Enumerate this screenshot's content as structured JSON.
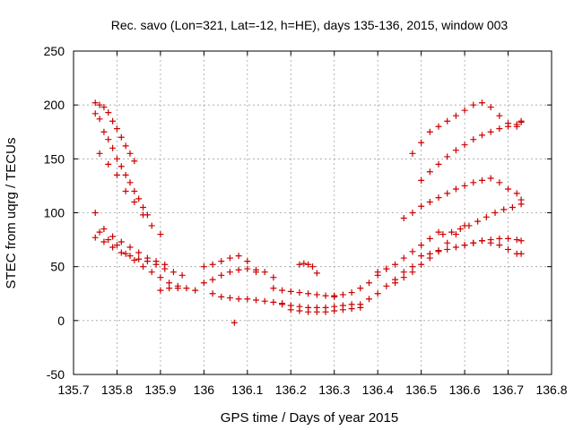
{
  "chart_data": {
    "type": "scatter",
    "title": "Rec. savo (Lon=321, Lat=-12, h=HE), days 135-136, 2015, window 003",
    "xlabel": "GPS time / Days of year 2015",
    "ylabel": "STEC from uqrg / TECUs",
    "xlim": [
      135.7,
      136.8
    ],
    "ylim": [
      -50,
      250
    ],
    "xticks": [
      "135.7",
      "135.8",
      "135.9",
      "136",
      "136.1",
      "136.2",
      "136.3",
      "136.4",
      "136.5",
      "136.6",
      "136.7",
      "136.8"
    ],
    "xtick_values": [
      135.7,
      135.8,
      135.9,
      136.0,
      136.1,
      136.2,
      136.3,
      136.4,
      136.5,
      136.6,
      136.7,
      136.8
    ],
    "yticks": [
      "-50",
      "0",
      "50",
      "100",
      "150",
      "200",
      "250"
    ],
    "ytick_values": [
      -50,
      0,
      50,
      100,
      150,
      200,
      250
    ],
    "grid": true,
    "marker": "plus",
    "color": "#cc0000",
    "x": [
      135.75,
      135.76,
      135.77,
      135.78,
      135.79,
      135.8,
      135.81,
      135.82,
      135.83,
      135.84,
      135.75,
      135.76,
      135.77,
      135.78,
      135.79,
      135.8,
      135.81,
      135.82,
      135.83,
      135.84,
      135.85,
      135.86,
      135.87,
      135.76,
      135.78,
      135.8,
      135.82,
      135.84,
      135.86,
      135.88,
      135.9,
      135.75,
      135.77,
      135.79,
      135.81,
      135.83,
      135.85,
      135.87,
      135.89,
      135.91,
      135.75,
      135.77,
      135.79,
      135.81,
      135.83,
      135.85,
      135.87,
      135.89,
      135.91,
      135.93,
      135.95,
      135.76,
      135.78,
      135.8,
      135.82,
      135.84,
      135.86,
      135.88,
      135.9,
      135.92,
      135.94,
      135.9,
      135.92,
      135.94,
      135.96,
      135.98,
      136.0,
      136.02,
      136.04,
      136.06,
      136.08,
      136.1,
      136.12,
      136.0,
      136.02,
      136.04,
      136.06,
      136.08,
      136.1,
      136.12,
      136.14,
      136.16,
      136.02,
      136.04,
      136.06,
      136.08,
      136.1,
      136.12,
      136.14,
      136.16,
      136.18,
      136.07,
      136.16,
      136.18,
      136.2,
      136.22,
      136.24,
      136.26,
      136.28,
      136.3,
      136.18,
      136.2,
      136.22,
      136.24,
      136.26,
      136.28,
      136.3,
      136.32,
      136.34,
      136.2,
      136.22,
      136.24,
      136.26,
      136.28,
      136.3,
      136.32,
      136.34,
      136.36,
      136.22,
      136.23,
      136.24,
      136.25,
      136.26,
      136.3,
      136.32,
      136.34,
      136.36,
      136.38,
      136.4,
      136.42,
      136.36,
      136.38,
      136.4,
      136.42,
      136.44,
      136.46,
      136.48,
      136.4,
      136.42,
      136.44,
      136.46,
      136.48,
      136.5,
      136.52,
      136.54,
      136.44,
      136.46,
      136.48,
      136.5,
      136.52,
      136.54,
      136.56,
      136.58,
      136.6,
      136.48,
      136.5,
      136.52,
      136.54,
      136.56,
      136.58,
      136.6,
      136.62,
      136.64,
      136.66,
      136.68,
      136.7,
      136.72,
      136.73,
      136.5,
      136.52,
      136.54,
      136.56,
      136.58,
      136.6,
      136.62,
      136.64,
      136.66,
      136.68,
      136.7,
      136.72,
      136.73,
      136.46,
      136.48,
      136.5,
      136.52,
      136.54,
      136.56,
      136.58,
      136.6,
      136.62,
      136.64,
      136.66,
      136.68,
      136.7,
      136.72,
      136.73,
      136.55,
      136.57,
      136.59,
      136.61,
      136.63,
      136.65,
      136.67,
      136.69,
      136.71,
      136.73,
      136.6,
      136.62,
      136.64,
      136.66,
      136.68,
      136.7,
      136.72,
      136.73,
      136.5,
      136.52,
      136.54,
      136.56,
      136.58,
      136.6,
      136.62,
      136.64,
      136.66,
      136.68,
      136.7,
      136.72,
      136.73
    ],
    "y": [
      202,
      200,
      198,
      193,
      185,
      178,
      170,
      162,
      155,
      148,
      192,
      187,
      175,
      168,
      160,
      150,
      143,
      135,
      128,
      120,
      113,
      105,
      98,
      155,
      145,
      135,
      120,
      110,
      98,
      88,
      80,
      100,
      85,
      78,
      73,
      68,
      63,
      58,
      55,
      52,
      77,
      73,
      68,
      63,
      60,
      57,
      55,
      52,
      48,
      45,
      42,
      82,
      75,
      70,
      62,
      56,
      50,
      45,
      40,
      35,
      30,
      28,
      30,
      32,
      30,
      28,
      50,
      52,
      55,
      58,
      60,
      55,
      45,
      35,
      38,
      42,
      45,
      47,
      48,
      47,
      45,
      40,
      25,
      22,
      21,
      20,
      20,
      19,
      18,
      17,
      16,
      -2,
      30,
      28,
      27,
      26,
      25,
      24,
      23,
      23,
      15,
      14,
      13,
      12,
      12,
      12,
      13,
      14,
      15,
      10,
      9,
      8,
      8,
      8,
      9,
      10,
      11,
      12,
      52,
      53,
      52,
      50,
      44,
      22,
      24,
      26,
      30,
      35,
      42,
      48,
      15,
      20,
      25,
      32,
      38,
      45,
      50,
      45,
      48,
      52,
      58,
      64,
      70,
      76,
      82,
      35,
      40,
      45,
      52,
      58,
      65,
      72,
      80,
      88,
      155,
      165,
      175,
      180,
      185,
      190,
      195,
      200,
      202,
      198,
      190,
      183,
      180,
      185,
      130,
      138,
      145,
      152,
      158,
      163,
      168,
      172,
      175,
      178,
      180,
      182,
      184,
      95,
      100,
      106,
      110,
      114,
      118,
      122,
      125,
      128,
      130,
      132,
      128,
      122,
      118,
      112,
      80,
      82,
      85,
      88,
      92,
      96,
      100,
      103,
      105,
      108,
      70,
      72,
      74,
      75,
      76,
      76,
      75,
      74,
      60,
      62,
      64,
      66,
      68,
      70,
      72,
      74,
      72,
      70,
      66,
      62,
      62
    ]
  }
}
